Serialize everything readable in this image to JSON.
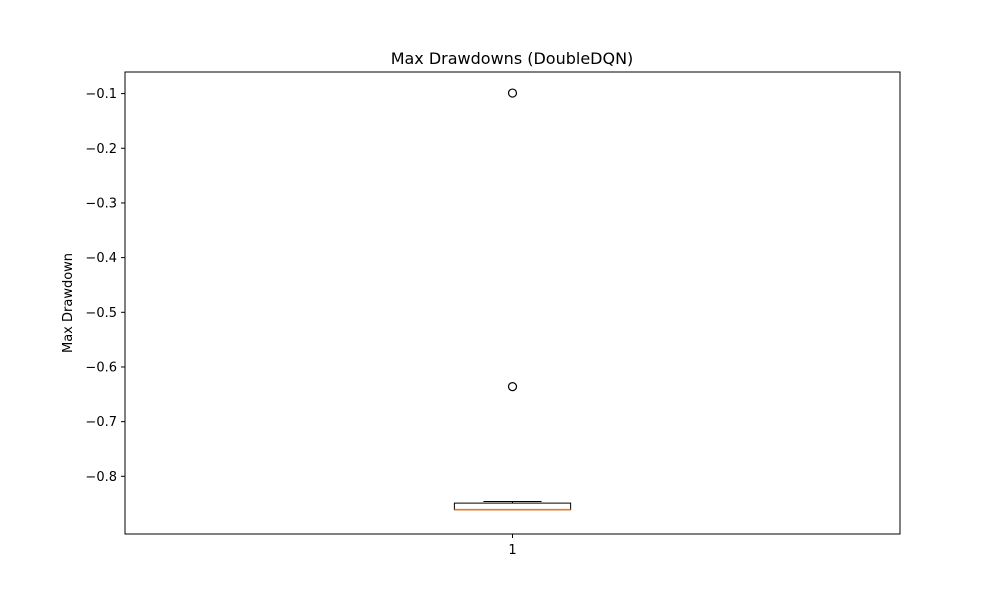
{
  "chart_data": {
    "type": "boxplot",
    "title": "Max Drawdowns (DoubleDQN)",
    "xlabel": "",
    "ylabel": "Max Drawdown",
    "categories": [
      "1"
    ],
    "ylim": [
      -0.9055,
      -0.0605
    ],
    "yticks": [
      -0.1,
      -0.2,
      -0.3,
      -0.4,
      -0.5,
      -0.6,
      -0.7,
      -0.8
    ],
    "ytick_labels": [
      "−0.1",
      "−0.2",
      "−0.3",
      "−0.4",
      "−0.5",
      "−0.6",
      "−0.7",
      "−0.8"
    ],
    "grid": false,
    "boxes": [
      {
        "category": "1",
        "whisker_low": -0.861,
        "q1": -0.861,
        "median": -0.861,
        "q3": -0.849,
        "whisker_high": -0.846,
        "outliers": [
          -0.099,
          -0.636
        ]
      }
    ],
    "colors": {
      "median": "#e07b28",
      "box": "#000000",
      "outlier": "#000000"
    }
  }
}
